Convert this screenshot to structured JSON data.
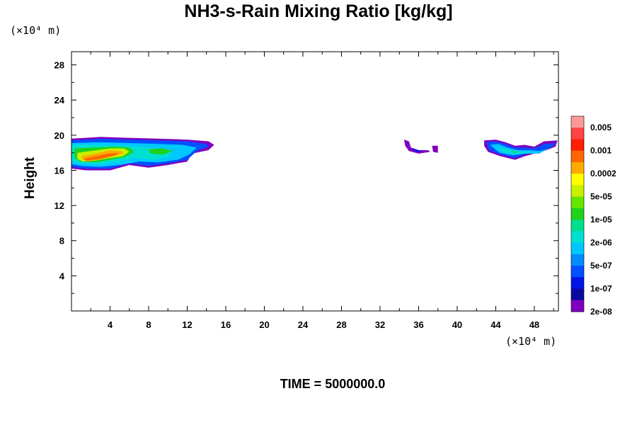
{
  "chart_data": {
    "type": "heatmap",
    "title": "NH3-s-Rain Mixing Ratio [kg/kg]",
    "xlabel": "",
    "ylabel": "Height",
    "x_unit": "(×10⁴ m)",
    "y_unit": "(×10⁴ m)",
    "xlim": [
      0,
      50.5
    ],
    "ylim": [
      0,
      29.5
    ],
    "x_ticks": [
      4,
      8,
      12,
      16,
      20,
      24,
      28,
      32,
      36,
      40,
      44,
      48
    ],
    "y_ticks": [
      4,
      8,
      12,
      16,
      20,
      24,
      28
    ],
    "footer": "TIME = 5000000.0",
    "colorbar": {
      "labels": [
        "0.005",
        "0.001",
        "0.0002",
        "5e-05",
        "1e-05",
        "2e-06",
        "5e-07",
        "1e-07",
        "2e-08"
      ],
      "colors": [
        "#ff9999",
        "#ff4444",
        "#ff1e00",
        "#ff6600",
        "#ffaa00",
        "#ffff00",
        "#c8f000",
        "#64e600",
        "#1ed21e",
        "#00e08a",
        "#00e0d0",
        "#00c8ff",
        "#008cff",
        "#0050ff",
        "#0014e6",
        "#0a0aa0",
        "#8000c0"
      ]
    },
    "regions": [
      {
        "name": "west-cloud",
        "x_range": [
          0,
          14.8
        ],
        "y_range": [
          16,
          20
        ],
        "max_level": "0.001"
      },
      {
        "name": "central-fragments",
        "x_range": [
          34.5,
          38
        ],
        "y_range": [
          18,
          19.5
        ],
        "max_level": "2e-08"
      },
      {
        "name": "east-cloud",
        "x_range": [
          42.8,
          50.4
        ],
        "y_range": [
          17,
          19.5
        ],
        "max_level": "1e-05"
      }
    ]
  }
}
